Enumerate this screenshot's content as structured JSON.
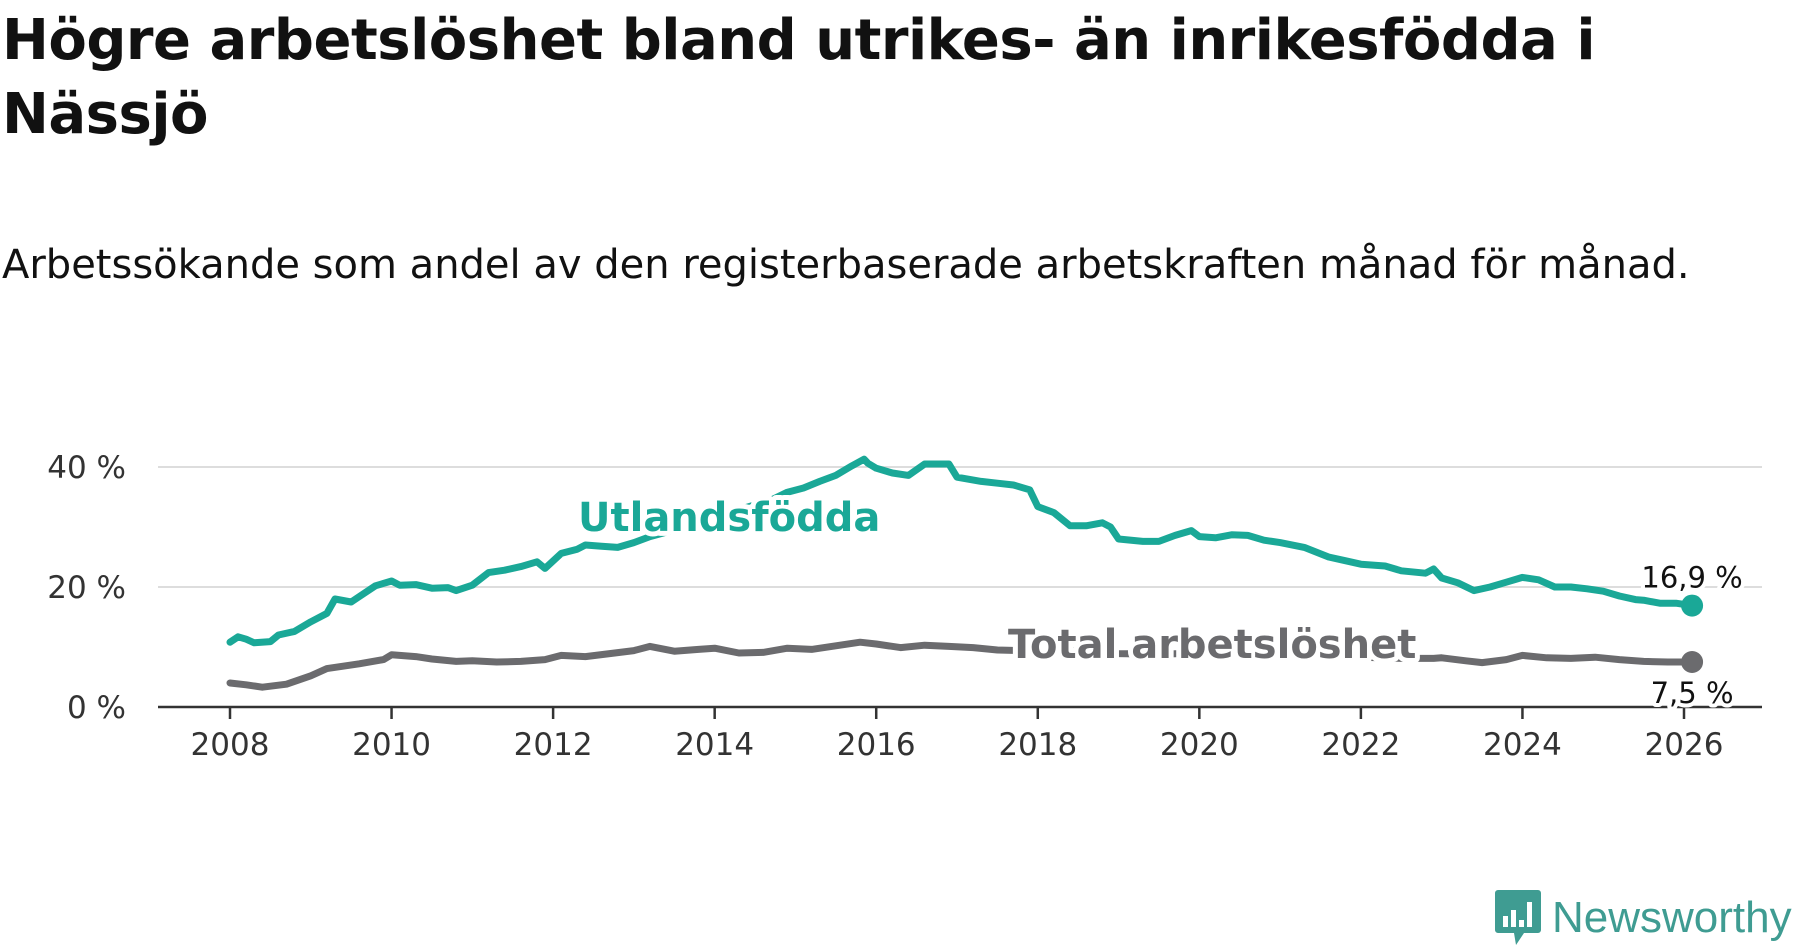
{
  "title": "Högre arbetslöshet bland utrikes- än inrikesfödda i Nässjö",
  "subtitle": "Arbetssökande som andel av den registerbaserade arbetskraften månad för månad.",
  "branding": {
    "name": "Newsworthy",
    "color": "#3f9c92",
    "icon": "newsworthy-logo-icon"
  },
  "chart_data": {
    "type": "line",
    "title": "Högre arbetslöshet bland utrikes- än inrikesfödda i Nässjö",
    "xlabel": "",
    "ylabel": "",
    "xlim": [
      2008,
      2026.1
    ],
    "ylim": [
      0,
      40
    ],
    "x_ticks": [
      2008,
      2010,
      2012,
      2014,
      2016,
      2018,
      2020,
      2022,
      2024,
      2026
    ],
    "x_tick_labels": [
      "2008",
      "2010",
      "2012",
      "2014",
      "2016",
      "2018",
      "2020",
      "2022",
      "2024",
      "2026"
    ],
    "y_ticks": [
      0,
      20,
      40
    ],
    "y_tick_labels": [
      "0 %",
      "20 %",
      "40 %"
    ],
    "grid": true,
    "series": [
      {
        "name": "Utlandsfödda",
        "color": "#1aa897",
        "end_label": "16,9 %",
        "points": [
          [
            2008.0,
            10.8
          ],
          [
            2008.1,
            11.7
          ],
          [
            2008.2,
            11.3
          ],
          [
            2008.3,
            10.7
          ],
          [
            2008.5,
            10.9
          ],
          [
            2008.6,
            12.0
          ],
          [
            2008.8,
            12.6
          ],
          [
            2009.0,
            14.2
          ],
          [
            2009.2,
            15.6
          ],
          [
            2009.3,
            18.0
          ],
          [
            2009.5,
            17.5
          ],
          [
            2009.6,
            18.4
          ],
          [
            2009.8,
            20.2
          ],
          [
            2010.0,
            21.0
          ],
          [
            2010.1,
            20.3
          ],
          [
            2010.3,
            20.4
          ],
          [
            2010.5,
            19.8
          ],
          [
            2010.7,
            19.9
          ],
          [
            2010.8,
            19.4
          ],
          [
            2011.0,
            20.3
          ],
          [
            2011.2,
            22.4
          ],
          [
            2011.4,
            22.8
          ],
          [
            2011.6,
            23.4
          ],
          [
            2011.8,
            24.2
          ],
          [
            2011.9,
            23.1
          ],
          [
            2012.1,
            25.6
          ],
          [
            2012.3,
            26.3
          ],
          [
            2012.4,
            27.0
          ],
          [
            2012.6,
            26.8
          ],
          [
            2012.8,
            26.6
          ],
          [
            2013.0,
            27.4
          ],
          [
            2013.2,
            28.4
          ],
          [
            2013.5,
            29.5
          ],
          [
            2013.7,
            30.3
          ],
          [
            2014.0,
            31.6
          ],
          [
            2014.2,
            32.5
          ],
          [
            2014.4,
            33.3
          ],
          [
            2014.7,
            34.5
          ],
          [
            2014.9,
            35.8
          ],
          [
            2015.1,
            36.5
          ],
          [
            2015.3,
            37.6
          ],
          [
            2015.5,
            38.6
          ],
          [
            2015.7,
            40.2
          ],
          [
            2015.85,
            41.3
          ],
          [
            2015.9,
            40.6
          ],
          [
            2016.0,
            39.8
          ],
          [
            2016.2,
            39.0
          ],
          [
            2016.4,
            38.6
          ],
          [
            2016.6,
            40.5
          ],
          [
            2016.9,
            40.5
          ],
          [
            2017.0,
            38.3
          ],
          [
            2017.3,
            37.6
          ],
          [
            2017.5,
            37.3
          ],
          [
            2017.7,
            37.0
          ],
          [
            2017.9,
            36.2
          ],
          [
            2018.0,
            33.4
          ],
          [
            2018.2,
            32.4
          ],
          [
            2018.4,
            30.2
          ],
          [
            2018.6,
            30.2
          ],
          [
            2018.8,
            30.7
          ],
          [
            2018.9,
            30.0
          ],
          [
            2019.0,
            28.0
          ],
          [
            2019.3,
            27.6
          ],
          [
            2019.5,
            27.6
          ],
          [
            2019.7,
            28.6
          ],
          [
            2019.9,
            29.4
          ],
          [
            2020.0,
            28.4
          ],
          [
            2020.2,
            28.2
          ],
          [
            2020.4,
            28.7
          ],
          [
            2020.6,
            28.6
          ],
          [
            2020.8,
            27.8
          ],
          [
            2021.0,
            27.4
          ],
          [
            2021.3,
            26.6
          ],
          [
            2021.6,
            25.0
          ],
          [
            2021.8,
            24.4
          ],
          [
            2022.0,
            23.8
          ],
          [
            2022.3,
            23.5
          ],
          [
            2022.5,
            22.7
          ],
          [
            2022.8,
            22.3
          ],
          [
            2022.9,
            23.0
          ],
          [
            2023.0,
            21.5
          ],
          [
            2023.2,
            20.7
          ],
          [
            2023.4,
            19.4
          ],
          [
            2023.6,
            20.0
          ],
          [
            2023.8,
            20.8
          ],
          [
            2024.0,
            21.6
          ],
          [
            2024.2,
            21.2
          ],
          [
            2024.4,
            20.0
          ],
          [
            2024.6,
            20.0
          ],
          [
            2024.8,
            19.7
          ],
          [
            2025.0,
            19.3
          ],
          [
            2025.2,
            18.5
          ],
          [
            2025.4,
            17.9
          ],
          [
            2025.5,
            17.8
          ],
          [
            2025.7,
            17.3
          ],
          [
            2025.9,
            17.3
          ],
          [
            2026.1,
            16.9
          ]
        ]
      },
      {
        "name": "Total arbetslöshet",
        "color": "#6b6b6e",
        "end_label": "7,5 %",
        "points": [
          [
            2008.0,
            4.0
          ],
          [
            2008.2,
            3.7
          ],
          [
            2008.4,
            3.3
          ],
          [
            2008.7,
            3.8
          ],
          [
            2009.0,
            5.2
          ],
          [
            2009.2,
            6.4
          ],
          [
            2009.4,
            6.8
          ],
          [
            2009.6,
            7.2
          ],
          [
            2009.9,
            7.9
          ],
          [
            2010.0,
            8.7
          ],
          [
            2010.3,
            8.4
          ],
          [
            2010.5,
            8.0
          ],
          [
            2010.8,
            7.6
          ],
          [
            2011.0,
            7.7
          ],
          [
            2011.3,
            7.5
          ],
          [
            2011.6,
            7.6
          ],
          [
            2011.9,
            7.9
          ],
          [
            2012.1,
            8.6
          ],
          [
            2012.4,
            8.4
          ],
          [
            2012.7,
            8.9
          ],
          [
            2013.0,
            9.4
          ],
          [
            2013.2,
            10.1
          ],
          [
            2013.5,
            9.3
          ],
          [
            2013.8,
            9.6
          ],
          [
            2014.0,
            9.8
          ],
          [
            2014.3,
            9.0
          ],
          [
            2014.6,
            9.1
          ],
          [
            2014.9,
            9.8
          ],
          [
            2015.2,
            9.6
          ],
          [
            2015.5,
            10.2
          ],
          [
            2015.8,
            10.8
          ],
          [
            2016.0,
            10.5
          ],
          [
            2016.3,
            9.9
          ],
          [
            2016.6,
            10.3
          ],
          [
            2016.9,
            10.1
          ],
          [
            2017.2,
            9.9
          ],
          [
            2017.5,
            9.5
          ],
          [
            2017.8,
            9.4
          ],
          [
            2018.0,
            9.5
          ],
          [
            2018.5,
            9.3
          ],
          [
            2019.0,
            8.9
          ],
          [
            2019.5,
            8.8
          ],
          [
            2020.0,
            9.0
          ],
          [
            2020.5,
            9.1
          ],
          [
            2021.0,
            8.9
          ],
          [
            2021.5,
            8.6
          ],
          [
            2022.0,
            8.3
          ],
          [
            2022.5,
            8.1
          ],
          [
            2022.9,
            8.1
          ],
          [
            2023.0,
            8.2
          ],
          [
            2023.3,
            7.7
          ],
          [
            2023.5,
            7.4
          ],
          [
            2023.8,
            7.9
          ],
          [
            2024.0,
            8.6
          ],
          [
            2024.3,
            8.2
          ],
          [
            2024.6,
            8.1
          ],
          [
            2024.9,
            8.3
          ],
          [
            2025.2,
            7.9
          ],
          [
            2025.5,
            7.6
          ],
          [
            2025.8,
            7.5
          ],
          [
            2026.1,
            7.5
          ]
        ]
      }
    ]
  }
}
